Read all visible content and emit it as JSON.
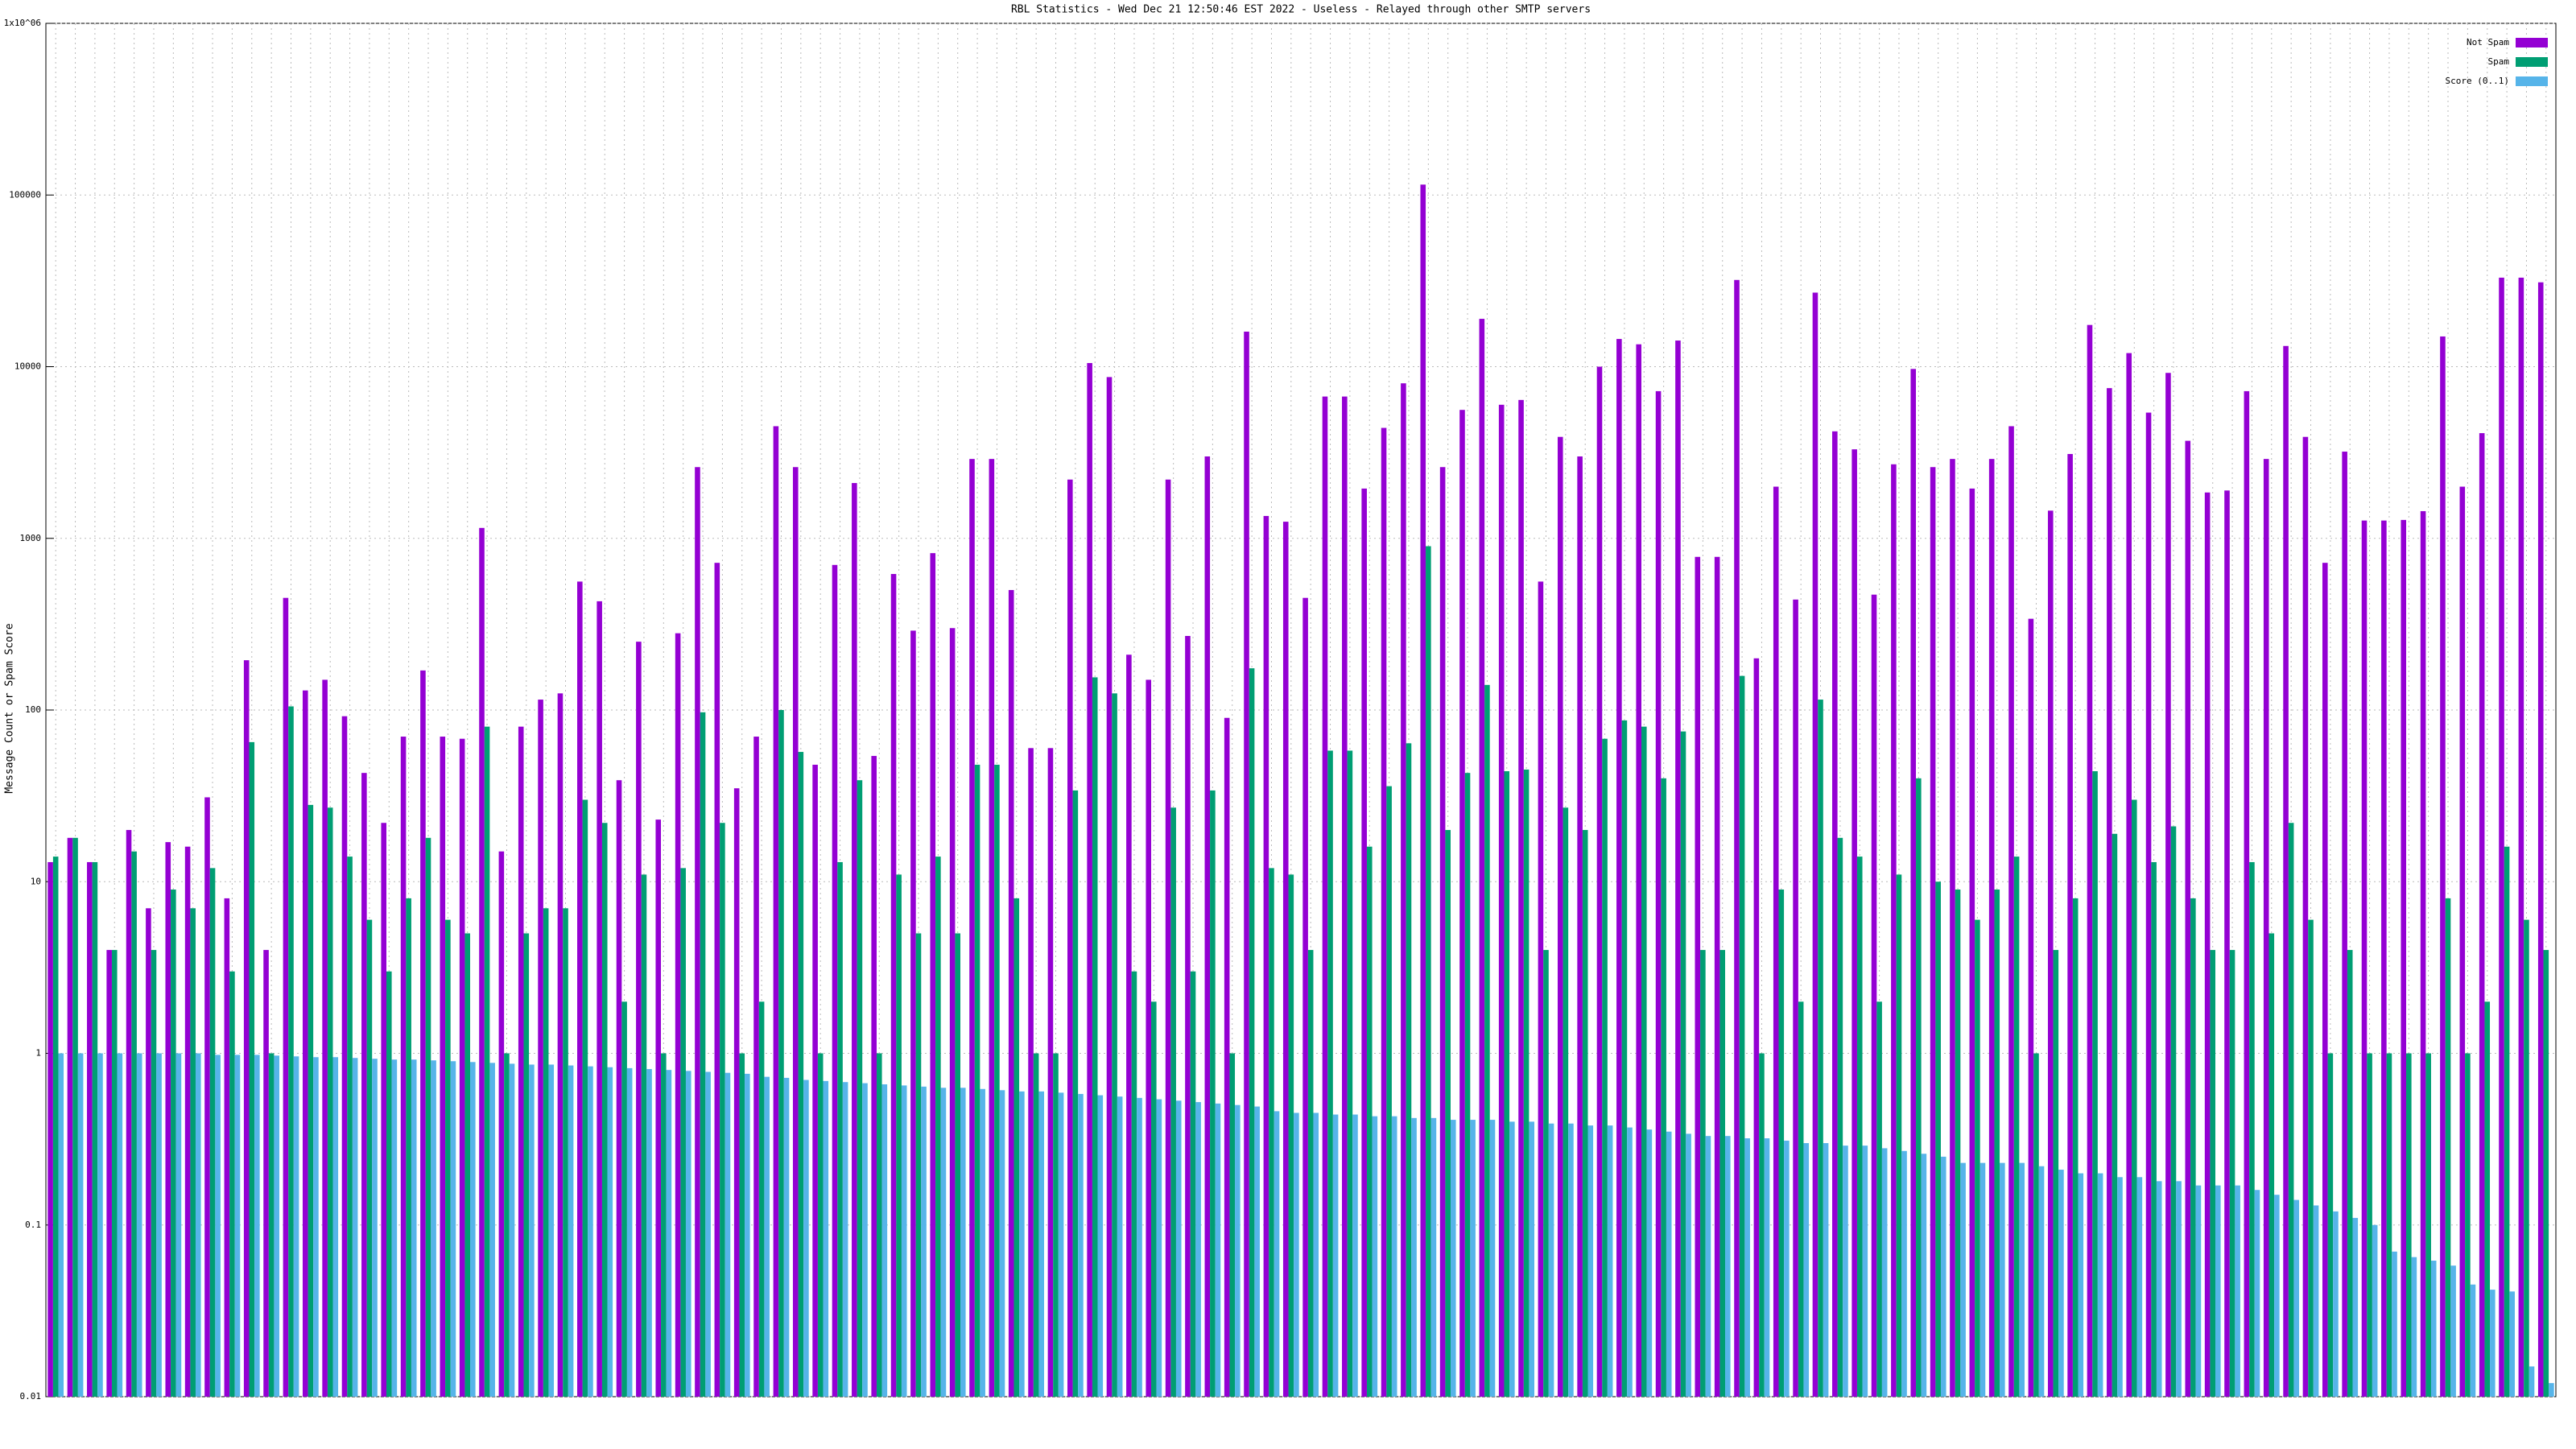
{
  "chart_data": {
    "type": "bar",
    "title": "RBL Statistics - Wed Dec 21 12:50:46 EST 2022 - Useless - Relayed through other SMTP servers",
    "y_label": "Message Count or Spam Score",
    "log_scale": true,
    "grid": true,
    "legend": "top-right",
    "categories": [
      null,
      null,
      null,
      null,
      null,
      null,
      null,
      null,
      null,
      null,
      null,
      null,
      null,
      null,
      null,
      null,
      null,
      null,
      null,
      null,
      null,
      null,
      null,
      null,
      null,
      null,
      null,
      null,
      null,
      null,
      null,
      null,
      null,
      null,
      null,
      null,
      null,
      null,
      null,
      null,
      null,
      null,
      null,
      null,
      null,
      null,
      null,
      null,
      null,
      null,
      null,
      null,
      null,
      null,
      null,
      null,
      null,
      null,
      null,
      null,
      null,
      null,
      null,
      null,
      null,
      null,
      null,
      null,
      null,
      null,
      null,
      null,
      null,
      null,
      null,
      null,
      null,
      null,
      null,
      null,
      null,
      null,
      null,
      null,
      null,
      null,
      null,
      null,
      null,
      null,
      null,
      null,
      null,
      null,
      null,
      null,
      null,
      null,
      null,
      null,
      null,
      null,
      null,
      null,
      null,
      null,
      null,
      null,
      null,
      null,
      null,
      null,
      null,
      null,
      null,
      null,
      null,
      null,
      null,
      null,
      null,
      null,
      null,
      null,
      null,
      null,
      null,
      null
    ],
    "ylim": [
      0.01,
      1000000
    ],
    "yticks": [
      0.01,
      0.1,
      1,
      10,
      100,
      1000,
      10000,
      100000,
      {
        "value": 1000000,
        "label": "1x10^06"
      }
    ],
    "series": [
      {
        "name": "Not Spam",
        "color": "#9400d3",
        "values": [
          13,
          18,
          13,
          4,
          20,
          7,
          17,
          16,
          31,
          8,
          195,
          4,
          450,
          130,
          150,
          92,
          43,
          22,
          70,
          170,
          70,
          68,
          1150,
          15,
          80,
          115,
          125,
          560,
          430,
          39,
          250,
          23,
          280,
          2600,
          720,
          35,
          70,
          4500,
          2600,
          48,
          700,
          2100,
          54,
          620,
          290,
          820,
          300,
          2900,
          2900,
          500,
          60,
          60,
          2200,
          10500,
          8700,
          210,
          150,
          2200,
          270,
          3000,
          90,
          16000,
          1350,
          1250,
          450,
          6700,
          6700,
          1950,
          4400,
          8000,
          115000,
          2600,
          5600,
          19000,
          6000,
          6400,
          560,
          3900,
          3000,
          10000,
          14500,
          13500,
          7200,
          14200,
          780,
          780,
          32000,
          200,
          2000,
          440,
          27000,
          4200,
          3300,
          470,
          2700,
          9700,
          2600,
          2900,
          1950,
          2900,
          4500,
          340,
          1450,
          3100,
          17500,
          7500,
          12000,
          5400,
          9200,
          3700,
          1850,
          1900,
          7200,
          2900,
          13200,
          3900,
          720,
          3200,
          1270,
          1270,
          1280,
          1440,
          15000,
          2000,
          4100,
          33000,
          33000,
          31000
        ]
      },
      {
        "name": "Spam",
        "color": "#009e73",
        "values": [
          14,
          18,
          13,
          4,
          15,
          4,
          9,
          7,
          12,
          3,
          65,
          1,
          105,
          28,
          27,
          14,
          6,
          3,
          8,
          18,
          6,
          5,
          80,
          1,
          5,
          7,
          7,
          30,
          22,
          2,
          11,
          1,
          12,
          97,
          22,
          1,
          2,
          100,
          57,
          1,
          13,
          39,
          1,
          11,
          5,
          14,
          5,
          48,
          48,
          8,
          1,
          1,
          34,
          155,
          125,
          3,
          2,
          27,
          3,
          34,
          1,
          175,
          12,
          11,
          4,
          58,
          58,
          16,
          36,
          64,
          900,
          20,
          43,
          140,
          44,
          45,
          4,
          27,
          20,
          68,
          87,
          80,
          40,
          75,
          4,
          4,
          158,
          1,
          9,
          2,
          115,
          18,
          14,
          2,
          11,
          40,
          10,
          9,
          6,
          9,
          14,
          1,
          4,
          8,
          44,
          19,
          30,
          13,
          21,
          8,
          4,
          4,
          13,
          5,
          22,
          6,
          1,
          4,
          1,
          1,
          1,
          1,
          8,
          1,
          2,
          16,
          6,
          4
        ]
      },
      {
        "name": "Score (0..1)",
        "color": "#56b4e9",
        "values": [
          1,
          1,
          1,
          1,
          1,
          1,
          1,
          1,
          0.98,
          0.98,
          0.98,
          0.97,
          0.96,
          0.95,
          0.95,
          0.94,
          0.93,
          0.92,
          0.92,
          0.91,
          0.9,
          0.89,
          0.88,
          0.87,
          0.86,
          0.86,
          0.85,
          0.84,
          0.83,
          0.82,
          0.81,
          0.8,
          0.79,
          0.78,
          0.77,
          0.76,
          0.73,
          0.72,
          0.7,
          0.69,
          0.68,
          0.67,
          0.66,
          0.65,
          0.64,
          0.63,
          0.63,
          0.62,
          0.61,
          0.6,
          0.6,
          0.59,
          0.58,
          0.57,
          0.56,
          0.55,
          0.54,
          0.53,
          0.52,
          0.51,
          0.5,
          0.49,
          0.46,
          0.45,
          0.45,
          0.44,
          0.44,
          0.43,
          0.43,
          0.42,
          0.42,
          0.41,
          0.41,
          0.41,
          0.4,
          0.4,
          0.39,
          0.39,
          0.38,
          0.38,
          0.37,
          0.36,
          0.35,
          0.34,
          0.33,
          0.33,
          0.32,
          0.32,
          0.31,
          0.3,
          0.3,
          0.29,
          0.29,
          0.28,
          0.27,
          0.26,
          0.25,
          0.23,
          0.23,
          0.23,
          0.23,
          0.22,
          0.21,
          0.2,
          0.2,
          0.19,
          0.19,
          0.18,
          0.18,
          0.17,
          0.17,
          0.17,
          0.16,
          0.15,
          0.14,
          0.13,
          0.12,
          0.11,
          0.1,
          0.07,
          0.065,
          0.062,
          0.058,
          0.045,
          0.042,
          0.041,
          0.015,
          0.012
        ]
      }
    ]
  }
}
